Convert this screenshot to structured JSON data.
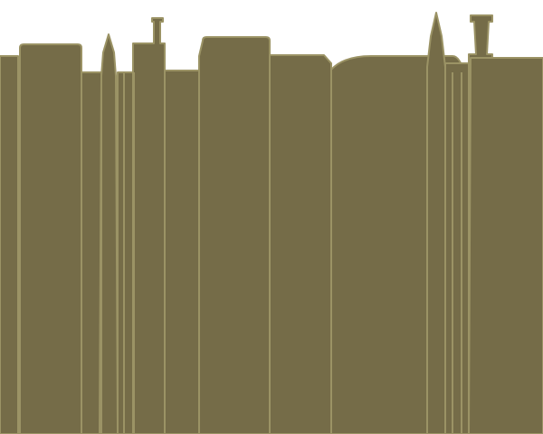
{
  "scene": {
    "description_visible_text": "",
    "colors": {
      "sky": "#ffffff",
      "building_fill": "#756c48",
      "building_edge": "#9b9365"
    },
    "elements": [
      {
        "name": "building-far-left",
        "kind": "building"
      },
      {
        "name": "building-left-tall",
        "kind": "building"
      },
      {
        "name": "building-left-low",
        "kind": "building"
      },
      {
        "name": "spire-left",
        "kind": "spire"
      },
      {
        "name": "building-narrow-pair",
        "kind": "building"
      },
      {
        "name": "tower-with-antenna",
        "kind": "tower"
      },
      {
        "name": "building-mid-low",
        "kind": "building"
      },
      {
        "name": "building-center-tall",
        "kind": "building"
      },
      {
        "name": "building-center-right",
        "kind": "building"
      },
      {
        "name": "building-curved-roof",
        "kind": "building"
      },
      {
        "name": "spire-right",
        "kind": "spire"
      },
      {
        "name": "building-right-narrow",
        "kind": "building"
      },
      {
        "name": "tower-with-chimney",
        "kind": "tower"
      },
      {
        "name": "building-far-right",
        "kind": "building"
      }
    ]
  }
}
